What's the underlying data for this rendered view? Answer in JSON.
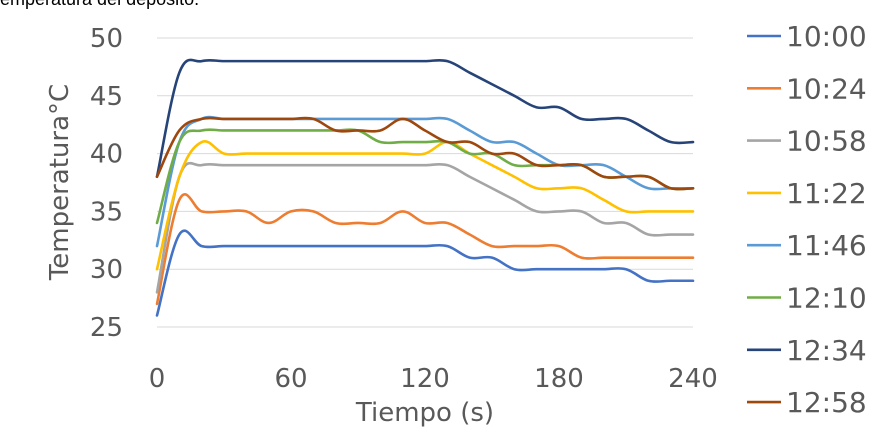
{
  "caption": "emperatura del depósito.",
  "chart_data": {
    "type": "line",
    "xlabel": "Tiempo (s)",
    "ylabel": "Temperatura°C",
    "xlim": [
      0,
      240
    ],
    "ylim": [
      25,
      50
    ],
    "xticks": [
      0,
      60,
      120,
      180,
      240
    ],
    "yticks": [
      25,
      30,
      35,
      40,
      45,
      50
    ],
    "grid": "horizontal",
    "legend": "right",
    "x": [
      0,
      10,
      20,
      30,
      40,
      50,
      60,
      70,
      80,
      90,
      100,
      110,
      120,
      130,
      140,
      150,
      160,
      170,
      180,
      190,
      200,
      210,
      220,
      230,
      240
    ],
    "series": [
      {
        "name": "10:00",
        "color": "#4472C4",
        "values": [
          26,
          33,
          32,
          32,
          32,
          32,
          32,
          32,
          32,
          32,
          32,
          32,
          32,
          32,
          31,
          31,
          30,
          30,
          30,
          30,
          30,
          30,
          29,
          29,
          29
        ]
      },
      {
        "name": "10:24",
        "color": "#ED7D31",
        "values": [
          27,
          36,
          35,
          35,
          35,
          34,
          35,
          35,
          34,
          34,
          34,
          35,
          34,
          34,
          33,
          32,
          32,
          32,
          32,
          31,
          31,
          31,
          31,
          31,
          31
        ]
      },
      {
        "name": "10:58",
        "color": "#A5A5A5",
        "values": [
          28,
          38,
          39,
          39,
          39,
          39,
          39,
          39,
          39,
          39,
          39,
          39,
          39,
          39,
          38,
          37,
          36,
          35,
          35,
          35,
          34,
          34,
          33,
          33,
          33
        ]
      },
      {
        "name": "11:22",
        "color": "#FFC000",
        "values": [
          30,
          38,
          41,
          40,
          40,
          40,
          40,
          40,
          40,
          40,
          40,
          40,
          40,
          41,
          40,
          39,
          38,
          37,
          37,
          37,
          36,
          35,
          35,
          35,
          35
        ]
      },
      {
        "name": "11:46",
        "color": "#5B9BD5",
        "values": [
          32,
          41,
          43,
          43,
          43,
          43,
          43,
          43,
          43,
          43,
          43,
          43,
          43,
          43,
          42,
          41,
          41,
          40,
          39,
          39,
          39,
          38,
          37,
          37,
          37
        ]
      },
      {
        "name": "12:10",
        "color": "#70AD47",
        "values": [
          34,
          41,
          42,
          42,
          42,
          42,
          42,
          42,
          42,
          42,
          41,
          41,
          41,
          41,
          40,
          40,
          39,
          39,
          39,
          39,
          38,
          38,
          38,
          37,
          37
        ]
      },
      {
        "name": "12:34",
        "color": "#264478",
        "values": [
          38,
          47,
          48,
          48,
          48,
          48,
          48,
          48,
          48,
          48,
          48,
          48,
          48,
          48,
          47,
          46,
          45,
          44,
          44,
          43,
          43,
          43,
          42,
          41,
          41
        ]
      },
      {
        "name": "12:58",
        "color": "#9E480E",
        "values": [
          38,
          42,
          43,
          43,
          43,
          43,
          43,
          43,
          42,
          42,
          42,
          43,
          42,
          41,
          41,
          40,
          40,
          39,
          39,
          39,
          38,
          38,
          38,
          37,
          37
        ]
      }
    ]
  }
}
